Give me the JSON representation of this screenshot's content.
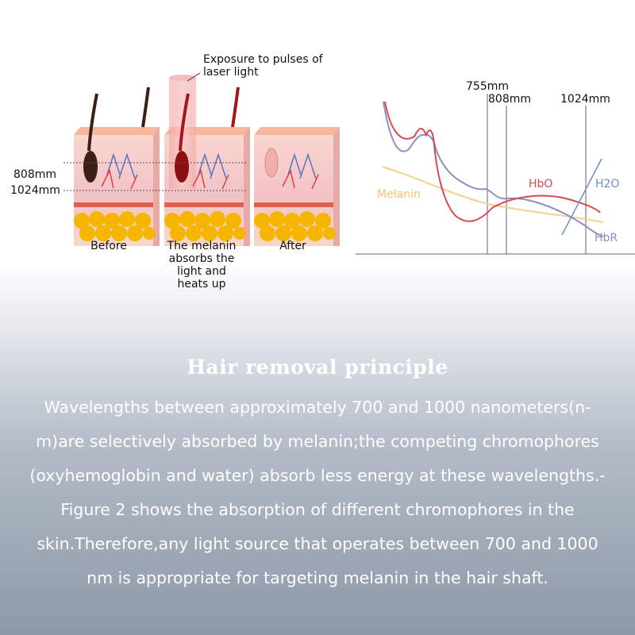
{
  "left_panel": {
    "exposure_label": [
      "Exposure to pulses of",
      "laser light"
    ],
    "depth_label_808": "808mm",
    "depth_label_1024": "1024mm",
    "captions": {
      "before": "Before",
      "middle": [
        "The melanin",
        "absorbs the",
        "light and",
        "heats up"
      ],
      "after": "After"
    },
    "colors": {
      "skin": "#f7c9c4",
      "fat": "#f5b500",
      "laser": "#f4a6a6",
      "hair": "#3b1f14"
    }
  },
  "right_panel": {
    "wavelength_labels": {
      "w755": "755mm",
      "w808": "808mm",
      "w1024": "1024mm"
    },
    "series_labels": {
      "melanin": "Melanin",
      "hbo": "HbO",
      "h2o": "H2O",
      "hbr": "HbR"
    },
    "colors": {
      "melanin": "#f6cf8f",
      "hbo": "#d64a55",
      "h2o": "#6b8fc9",
      "hbr": "#8d8fc4"
    }
  },
  "text": {
    "heading": "Hair removal principle",
    "lines": [
      "Wavelengths between approximately 700 and 1000 nanometers(n-",
      "m)are selectively absorbed by melanin;the competing chromophores",
      "(oxyhemoglobin and water) absorb less energy at these wavelengths.-",
      "Figure 2 shows the absorption of different chromophores in the",
      "skin.Therefore,any light source that operates between 700 and 1000",
      "nm is appropriate for targeting melanin in the hair shaft."
    ]
  }
}
